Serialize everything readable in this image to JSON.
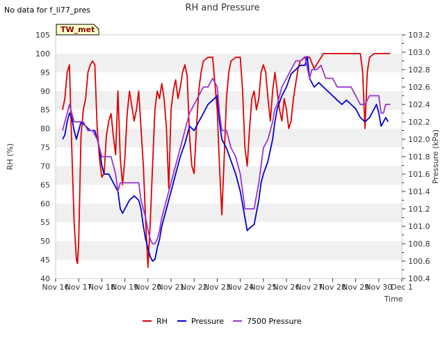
{
  "no_data_text": "No data for f_li77_pres",
  "site_badge": "TW_met",
  "chart_data": {
    "type": "line",
    "title": "RH and Pressure",
    "xlabel": "Time",
    "ylabel_left": "RH (%)",
    "ylabel_right": "Pressure (kPa)",
    "x_ticks": [
      "Nov 16",
      "Nov 17",
      "Nov 18",
      "Nov 19",
      "Nov 20",
      "Nov 21",
      "Nov 22",
      "Nov 23",
      "Nov 24",
      "Nov 25",
      "Nov 26",
      "Nov 27",
      "Nov 28",
      "Nov 29",
      "Nov 30",
      "Dec 1"
    ],
    "x_range_days": [
      0,
      15
    ],
    "ylim_left": [
      40,
      105
    ],
    "yticks_left": [
      40,
      45,
      50,
      55,
      60,
      65,
      70,
      75,
      80,
      85,
      90,
      95,
      100,
      105
    ],
    "ylim_right": [
      100.4,
      103.2
    ],
    "yticks_right": [
      "100.4",
      "100.6",
      "100.8",
      "101.0",
      "101.2",
      "101.4",
      "101.6",
      "101.8",
      "102.0",
      "102.2",
      "102.4",
      "102.6",
      "102.8",
      "103.0",
      "103.2"
    ],
    "grid": "horizontal bands",
    "legend_position": "bottom",
    "series": [
      {
        "name": "RH",
        "axis": "left",
        "color": "#dd0000",
        "points": [
          [
            0.3,
            85
          ],
          [
            0.4,
            88
          ],
          [
            0.5,
            95
          ],
          [
            0.6,
            97
          ],
          [
            0.7,
            75
          ],
          [
            0.8,
            55
          ],
          [
            0.9,
            45
          ],
          [
            0.95,
            44
          ],
          [
            1.0,
            50
          ],
          [
            1.1,
            78
          ],
          [
            1.2,
            85
          ],
          [
            1.3,
            88
          ],
          [
            1.4,
            95
          ],
          [
            1.5,
            97
          ],
          [
            1.6,
            98
          ],
          [
            1.7,
            97
          ],
          [
            1.8,
            80
          ],
          [
            1.9,
            72
          ],
          [
            2.0,
            67
          ],
          [
            2.1,
            68
          ],
          [
            2.2,
            78
          ],
          [
            2.3,
            82
          ],
          [
            2.4,
            84
          ],
          [
            2.5,
            78
          ],
          [
            2.6,
            73
          ],
          [
            2.7,
            90
          ],
          [
            2.8,
            72
          ],
          [
            2.9,
            65
          ],
          [
            3.0,
            72
          ],
          [
            3.1,
            84
          ],
          [
            3.2,
            90
          ],
          [
            3.3,
            86
          ],
          [
            3.4,
            82
          ],
          [
            3.5,
            85
          ],
          [
            3.6,
            90
          ],
          [
            3.7,
            80
          ],
          [
            3.8,
            70
          ],
          [
            3.9,
            55
          ],
          [
            4.0,
            43
          ],
          [
            4.1,
            55
          ],
          [
            4.2,
            70
          ],
          [
            4.3,
            85
          ],
          [
            4.4,
            90
          ],
          [
            4.5,
            88
          ],
          [
            4.6,
            92
          ],
          [
            4.7,
            88
          ],
          [
            4.8,
            80
          ],
          [
            4.9,
            64
          ],
          [
            5.0,
            85
          ],
          [
            5.1,
            90
          ],
          [
            5.2,
            93
          ],
          [
            5.3,
            88
          ],
          [
            5.4,
            91
          ],
          [
            5.5,
            95
          ],
          [
            5.6,
            97
          ],
          [
            5.7,
            94
          ],
          [
            5.8,
            78
          ],
          [
            5.9,
            70
          ],
          [
            6.0,
            68
          ],
          [
            6.1,
            80
          ],
          [
            6.2,
            90
          ],
          [
            6.3,
            95
          ],
          [
            6.4,
            98
          ],
          [
            6.6,
            99
          ],
          [
            6.8,
            99
          ],
          [
            7.0,
            85
          ],
          [
            7.1,
            70
          ],
          [
            7.2,
            57
          ],
          [
            7.3,
            72
          ],
          [
            7.4,
            88
          ],
          [
            7.5,
            95
          ],
          [
            7.6,
            98
          ],
          [
            7.8,
            99
          ],
          [
            8.0,
            99
          ],
          [
            8.1,
            90
          ],
          [
            8.2,
            75
          ],
          [
            8.3,
            70
          ],
          [
            8.4,
            80
          ],
          [
            8.5,
            88
          ],
          [
            8.6,
            90
          ],
          [
            8.7,
            85
          ],
          [
            8.8,
            88
          ],
          [
            8.9,
            95
          ],
          [
            9.0,
            97
          ],
          [
            9.1,
            95
          ],
          [
            9.2,
            88
          ],
          [
            9.3,
            82
          ],
          [
            9.4,
            90
          ],
          [
            9.5,
            95
          ],
          [
            9.6,
            90
          ],
          [
            9.7,
            85
          ],
          [
            9.8,
            82
          ],
          [
            9.9,
            88
          ],
          [
            10.0,
            85
          ],
          [
            10.1,
            80
          ],
          [
            10.2,
            82
          ],
          [
            10.3,
            88
          ],
          [
            10.4,
            92
          ],
          [
            10.5,
            96
          ],
          [
            10.6,
            98
          ],
          [
            10.8,
            99
          ],
          [
            11.0,
            99
          ],
          [
            11.2,
            96
          ],
          [
            11.4,
            98
          ],
          [
            11.6,
            100
          ],
          [
            12.0,
            100
          ],
          [
            12.5,
            100
          ],
          [
            13.0,
            100
          ],
          [
            13.2,
            100
          ],
          [
            13.3,
            95
          ],
          [
            13.4,
            80
          ],
          [
            13.5,
            95
          ],
          [
            13.6,
            99
          ],
          [
            13.8,
            100
          ],
          [
            14.2,
            100
          ],
          [
            14.5,
            100
          ]
        ]
      },
      {
        "name": "Pressure",
        "axis": "right",
        "color": "#0000cc",
        "points": [
          [
            0.3,
            102.0
          ],
          [
            0.4,
            102.05
          ],
          [
            0.5,
            102.2
          ],
          [
            0.6,
            102.3
          ],
          [
            0.7,
            102.25
          ],
          [
            0.8,
            102.1
          ],
          [
            0.9,
            102.0
          ],
          [
            1.0,
            102.1
          ],
          [
            1.1,
            102.2
          ],
          [
            1.3,
            102.15
          ],
          [
            1.5,
            102.1
          ],
          [
            1.7,
            102.1
          ],
          [
            1.8,
            102.0
          ],
          [
            1.9,
            101.9
          ],
          [
            2.0,
            101.7
          ],
          [
            2.1,
            101.6
          ],
          [
            2.3,
            101.6
          ],
          [
            2.5,
            101.5
          ],
          [
            2.6,
            101.45
          ],
          [
            2.7,
            101.4
          ],
          [
            2.8,
            101.2
          ],
          [
            2.9,
            101.15
          ],
          [
            3.0,
            101.2
          ],
          [
            3.2,
            101.3
          ],
          [
            3.4,
            101.35
          ],
          [
            3.6,
            101.3
          ],
          [
            3.7,
            101.2
          ],
          [
            3.8,
            101.0
          ],
          [
            3.9,
            100.85
          ],
          [
            4.0,
            100.75
          ],
          [
            4.1,
            100.65
          ],
          [
            4.2,
            100.6
          ],
          [
            4.3,
            100.62
          ],
          [
            4.4,
            100.75
          ],
          [
            4.5,
            100.85
          ],
          [
            4.6,
            101.0
          ],
          [
            4.7,
            101.1
          ],
          [
            4.8,
            101.2
          ],
          [
            4.9,
            101.3
          ],
          [
            5.0,
            101.4
          ],
          [
            5.2,
            101.6
          ],
          [
            5.4,
            101.8
          ],
          [
            5.6,
            101.95
          ],
          [
            5.8,
            102.15
          ],
          [
            6.0,
            102.1
          ],
          [
            6.2,
            102.2
          ],
          [
            6.4,
            102.3
          ],
          [
            6.6,
            102.4
          ],
          [
            6.8,
            102.45
          ],
          [
            7.0,
            102.5
          ],
          [
            7.1,
            102.2
          ],
          [
            7.2,
            102.0
          ],
          [
            7.4,
            101.9
          ],
          [
            7.6,
            101.75
          ],
          [
            7.8,
            101.6
          ],
          [
            8.0,
            101.4
          ],
          [
            8.2,
            101.1
          ],
          [
            8.3,
            100.95
          ],
          [
            8.4,
            100.98
          ],
          [
            8.6,
            101.02
          ],
          [
            8.8,
            101.3
          ],
          [
            8.9,
            101.5
          ],
          [
            9.0,
            101.6
          ],
          [
            9.2,
            101.75
          ],
          [
            9.4,
            102.0
          ],
          [
            9.5,
            102.2
          ],
          [
            9.6,
            102.35
          ],
          [
            9.8,
            102.5
          ],
          [
            10.0,
            102.6
          ],
          [
            10.2,
            102.75
          ],
          [
            10.4,
            102.8
          ],
          [
            10.6,
            102.85
          ],
          [
            10.8,
            102.85
          ],
          [
            10.9,
            102.95
          ],
          [
            11.0,
            102.7
          ],
          [
            11.2,
            102.6
          ],
          [
            11.4,
            102.65
          ],
          [
            11.6,
            102.6
          ],
          [
            11.8,
            102.55
          ],
          [
            12.0,
            102.5
          ],
          [
            12.2,
            102.45
          ],
          [
            12.4,
            102.4
          ],
          [
            12.6,
            102.45
          ],
          [
            12.8,
            102.4
          ],
          [
            13.0,
            102.35
          ],
          [
            13.2,
            102.25
          ],
          [
            13.4,
            102.2
          ],
          [
            13.6,
            102.25
          ],
          [
            13.8,
            102.35
          ],
          [
            13.9,
            102.4
          ],
          [
            14.0,
            102.3
          ],
          [
            14.1,
            102.15
          ],
          [
            14.2,
            102.2
          ],
          [
            14.3,
            102.25
          ],
          [
            14.4,
            102.2
          ]
        ]
      },
      {
        "name": "7500 Pressure",
        "axis": "right",
        "color": "#9933cc",
        "points": [
          [
            0.3,
            102.1
          ],
          [
            0.4,
            102.2
          ],
          [
            0.5,
            102.3
          ],
          [
            0.6,
            102.4
          ],
          [
            0.7,
            102.3
          ],
          [
            0.8,
            102.2
          ],
          [
            1.0,
            102.2
          ],
          [
            1.2,
            102.2
          ],
          [
            1.4,
            102.1
          ],
          [
            1.6,
            102.1
          ],
          [
            1.8,
            102.0
          ],
          [
            1.9,
            101.9
          ],
          [
            2.0,
            101.8
          ],
          [
            2.2,
            101.8
          ],
          [
            2.4,
            101.8
          ],
          [
            2.6,
            101.6
          ],
          [
            2.7,
            101.4
          ],
          [
            2.8,
            101.5
          ],
          [
            3.0,
            101.5
          ],
          [
            3.2,
            101.5
          ],
          [
            3.4,
            101.5
          ],
          [
            3.6,
            101.5
          ],
          [
            3.7,
            101.3
          ],
          [
            3.8,
            101.2
          ],
          [
            3.9,
            101.1
          ],
          [
            4.0,
            100.95
          ],
          [
            4.1,
            100.85
          ],
          [
            4.2,
            100.8
          ],
          [
            4.3,
            100.8
          ],
          [
            4.4,
            100.85
          ],
          [
            4.5,
            100.95
          ],
          [
            4.6,
            101.1
          ],
          [
            4.7,
            101.2
          ],
          [
            4.8,
            101.3
          ],
          [
            4.9,
            101.4
          ],
          [
            5.0,
            101.5
          ],
          [
            5.2,
            101.7
          ],
          [
            5.4,
            101.9
          ],
          [
            5.6,
            102.1
          ],
          [
            5.8,
            102.3
          ],
          [
            6.0,
            102.4
          ],
          [
            6.2,
            102.5
          ],
          [
            6.4,
            102.6
          ],
          [
            6.6,
            102.6
          ],
          [
            6.8,
            102.7
          ],
          [
            7.0,
            102.6
          ],
          [
            7.1,
            102.3
          ],
          [
            7.2,
            102.1
          ],
          [
            7.4,
            102.1
          ],
          [
            7.6,
            101.9
          ],
          [
            7.8,
            101.8
          ],
          [
            8.0,
            101.6
          ],
          [
            8.1,
            101.4
          ],
          [
            8.2,
            101.2
          ],
          [
            8.4,
            101.2
          ],
          [
            8.6,
            101.2
          ],
          [
            8.8,
            101.5
          ],
          [
            8.9,
            101.7
          ],
          [
            9.0,
            101.9
          ],
          [
            9.2,
            102.0
          ],
          [
            9.4,
            102.2
          ],
          [
            9.5,
            102.35
          ],
          [
            9.6,
            102.4
          ],
          [
            9.8,
            102.6
          ],
          [
            10.0,
            102.7
          ],
          [
            10.2,
            102.8
          ],
          [
            10.4,
            102.9
          ],
          [
            10.6,
            102.9
          ],
          [
            10.8,
            102.95
          ],
          [
            11.0,
            102.7
          ],
          [
            11.1,
            102.8
          ],
          [
            11.3,
            102.8
          ],
          [
            11.5,
            102.85
          ],
          [
            11.7,
            102.7
          ],
          [
            12.0,
            102.7
          ],
          [
            12.2,
            102.6
          ],
          [
            12.4,
            102.6
          ],
          [
            12.6,
            102.6
          ],
          [
            12.8,
            102.6
          ],
          [
            13.0,
            102.5
          ],
          [
            13.2,
            102.4
          ],
          [
            13.4,
            102.4
          ],
          [
            13.6,
            102.5
          ],
          [
            13.8,
            102.5
          ],
          [
            14.0,
            102.5
          ],
          [
            14.1,
            102.3
          ],
          [
            14.2,
            102.3
          ],
          [
            14.3,
            102.4
          ],
          [
            14.5,
            102.4
          ]
        ]
      }
    ]
  }
}
